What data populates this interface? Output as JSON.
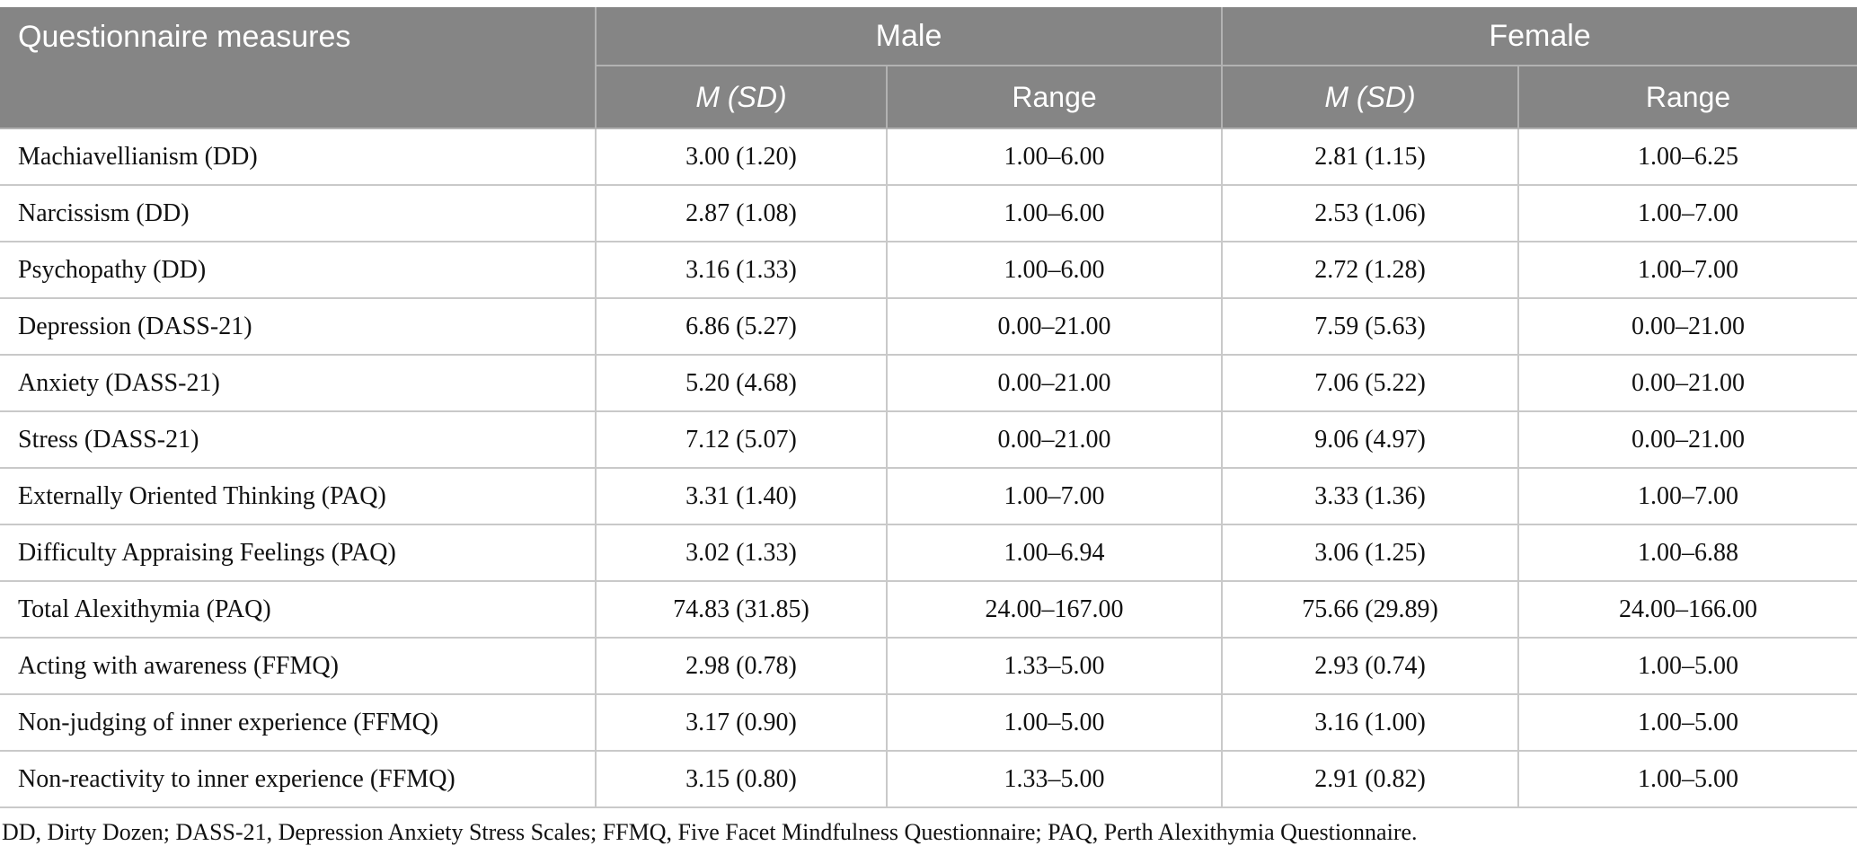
{
  "table": {
    "header": {
      "measures_label": "Questionnaire measures",
      "groups": [
        {
          "label": "Male"
        },
        {
          "label": "Female"
        }
      ],
      "sub": [
        "M (SD)",
        "Range",
        "M (SD)",
        "Range"
      ]
    },
    "rows": [
      {
        "measure": "Machiavellianism (DD)",
        "male_msd": "3.00 (1.20)",
        "male_range": "1.00–6.00",
        "female_msd": "2.81 (1.15)",
        "female_range": "1.00–6.25"
      },
      {
        "measure": "Narcissism (DD)",
        "male_msd": "2.87 (1.08)",
        "male_range": "1.00–6.00",
        "female_msd": "2.53 (1.06)",
        "female_range": "1.00–7.00"
      },
      {
        "measure": "Psychopathy (DD)",
        "male_msd": "3.16 (1.33)",
        "male_range": "1.00–6.00",
        "female_msd": "2.72 (1.28)",
        "female_range": "1.00–7.00"
      },
      {
        "measure": "Depression (DASS-21)",
        "male_msd": "6.86 (5.27)",
        "male_range": "0.00–21.00",
        "female_msd": "7.59 (5.63)",
        "female_range": "0.00–21.00"
      },
      {
        "measure": "Anxiety (DASS-21)",
        "male_msd": "5.20 (4.68)",
        "male_range": "0.00–21.00",
        "female_msd": "7.06 (5.22)",
        "female_range": "0.00–21.00"
      },
      {
        "measure": "Stress (DASS-21)",
        "male_msd": "7.12 (5.07)",
        "male_range": "0.00–21.00",
        "female_msd": "9.06 (4.97)",
        "female_range": "0.00–21.00"
      },
      {
        "measure": "Externally Oriented Thinking (PAQ)",
        "male_msd": "3.31 (1.40)",
        "male_range": "1.00–7.00",
        "female_msd": "3.33 (1.36)",
        "female_range": "1.00–7.00"
      },
      {
        "measure": "Difficulty Appraising Feelings (PAQ)",
        "male_msd": "3.02 (1.33)",
        "male_range": "1.00–6.94",
        "female_msd": "3.06 (1.25)",
        "female_range": "1.00–6.88"
      },
      {
        "measure": "Total Alexithymia (PAQ)",
        "male_msd": "74.83 (31.85)",
        "male_range": "24.00–167.00",
        "female_msd": "75.66 (29.89)",
        "female_range": "24.00–166.00"
      },
      {
        "measure": "Acting with awareness (FFMQ)",
        "male_msd": "2.98 (0.78)",
        "male_range": "1.33–5.00",
        "female_msd": "2.93 (0.74)",
        "female_range": "1.00–5.00"
      },
      {
        "measure": "Non-judging of inner experience (FFMQ)",
        "male_msd": "3.17 (0.90)",
        "male_range": "1.00–5.00",
        "female_msd": "3.16 (1.00)",
        "female_range": "1.00–5.00"
      },
      {
        "measure": "Non-reactivity to inner experience (FFMQ)",
        "male_msd": "3.15 (0.80)",
        "male_range": "1.33–5.00",
        "female_msd": "2.91 (0.82)",
        "female_range": "1.00–5.00"
      }
    ],
    "footnote": "DD, Dirty Dozen; DASS-21, Depression Anxiety Stress Scales; FFMQ, Five Facet Mindfulness Questionnaire; PAQ, Perth Alexithymia Questionnaire."
  },
  "colors": {
    "header_bg": "#858585",
    "header_text": "#ffffff",
    "header_divider": "#b2b2b2",
    "body_border": "#c9c9c9",
    "body_text": "#111111"
  }
}
